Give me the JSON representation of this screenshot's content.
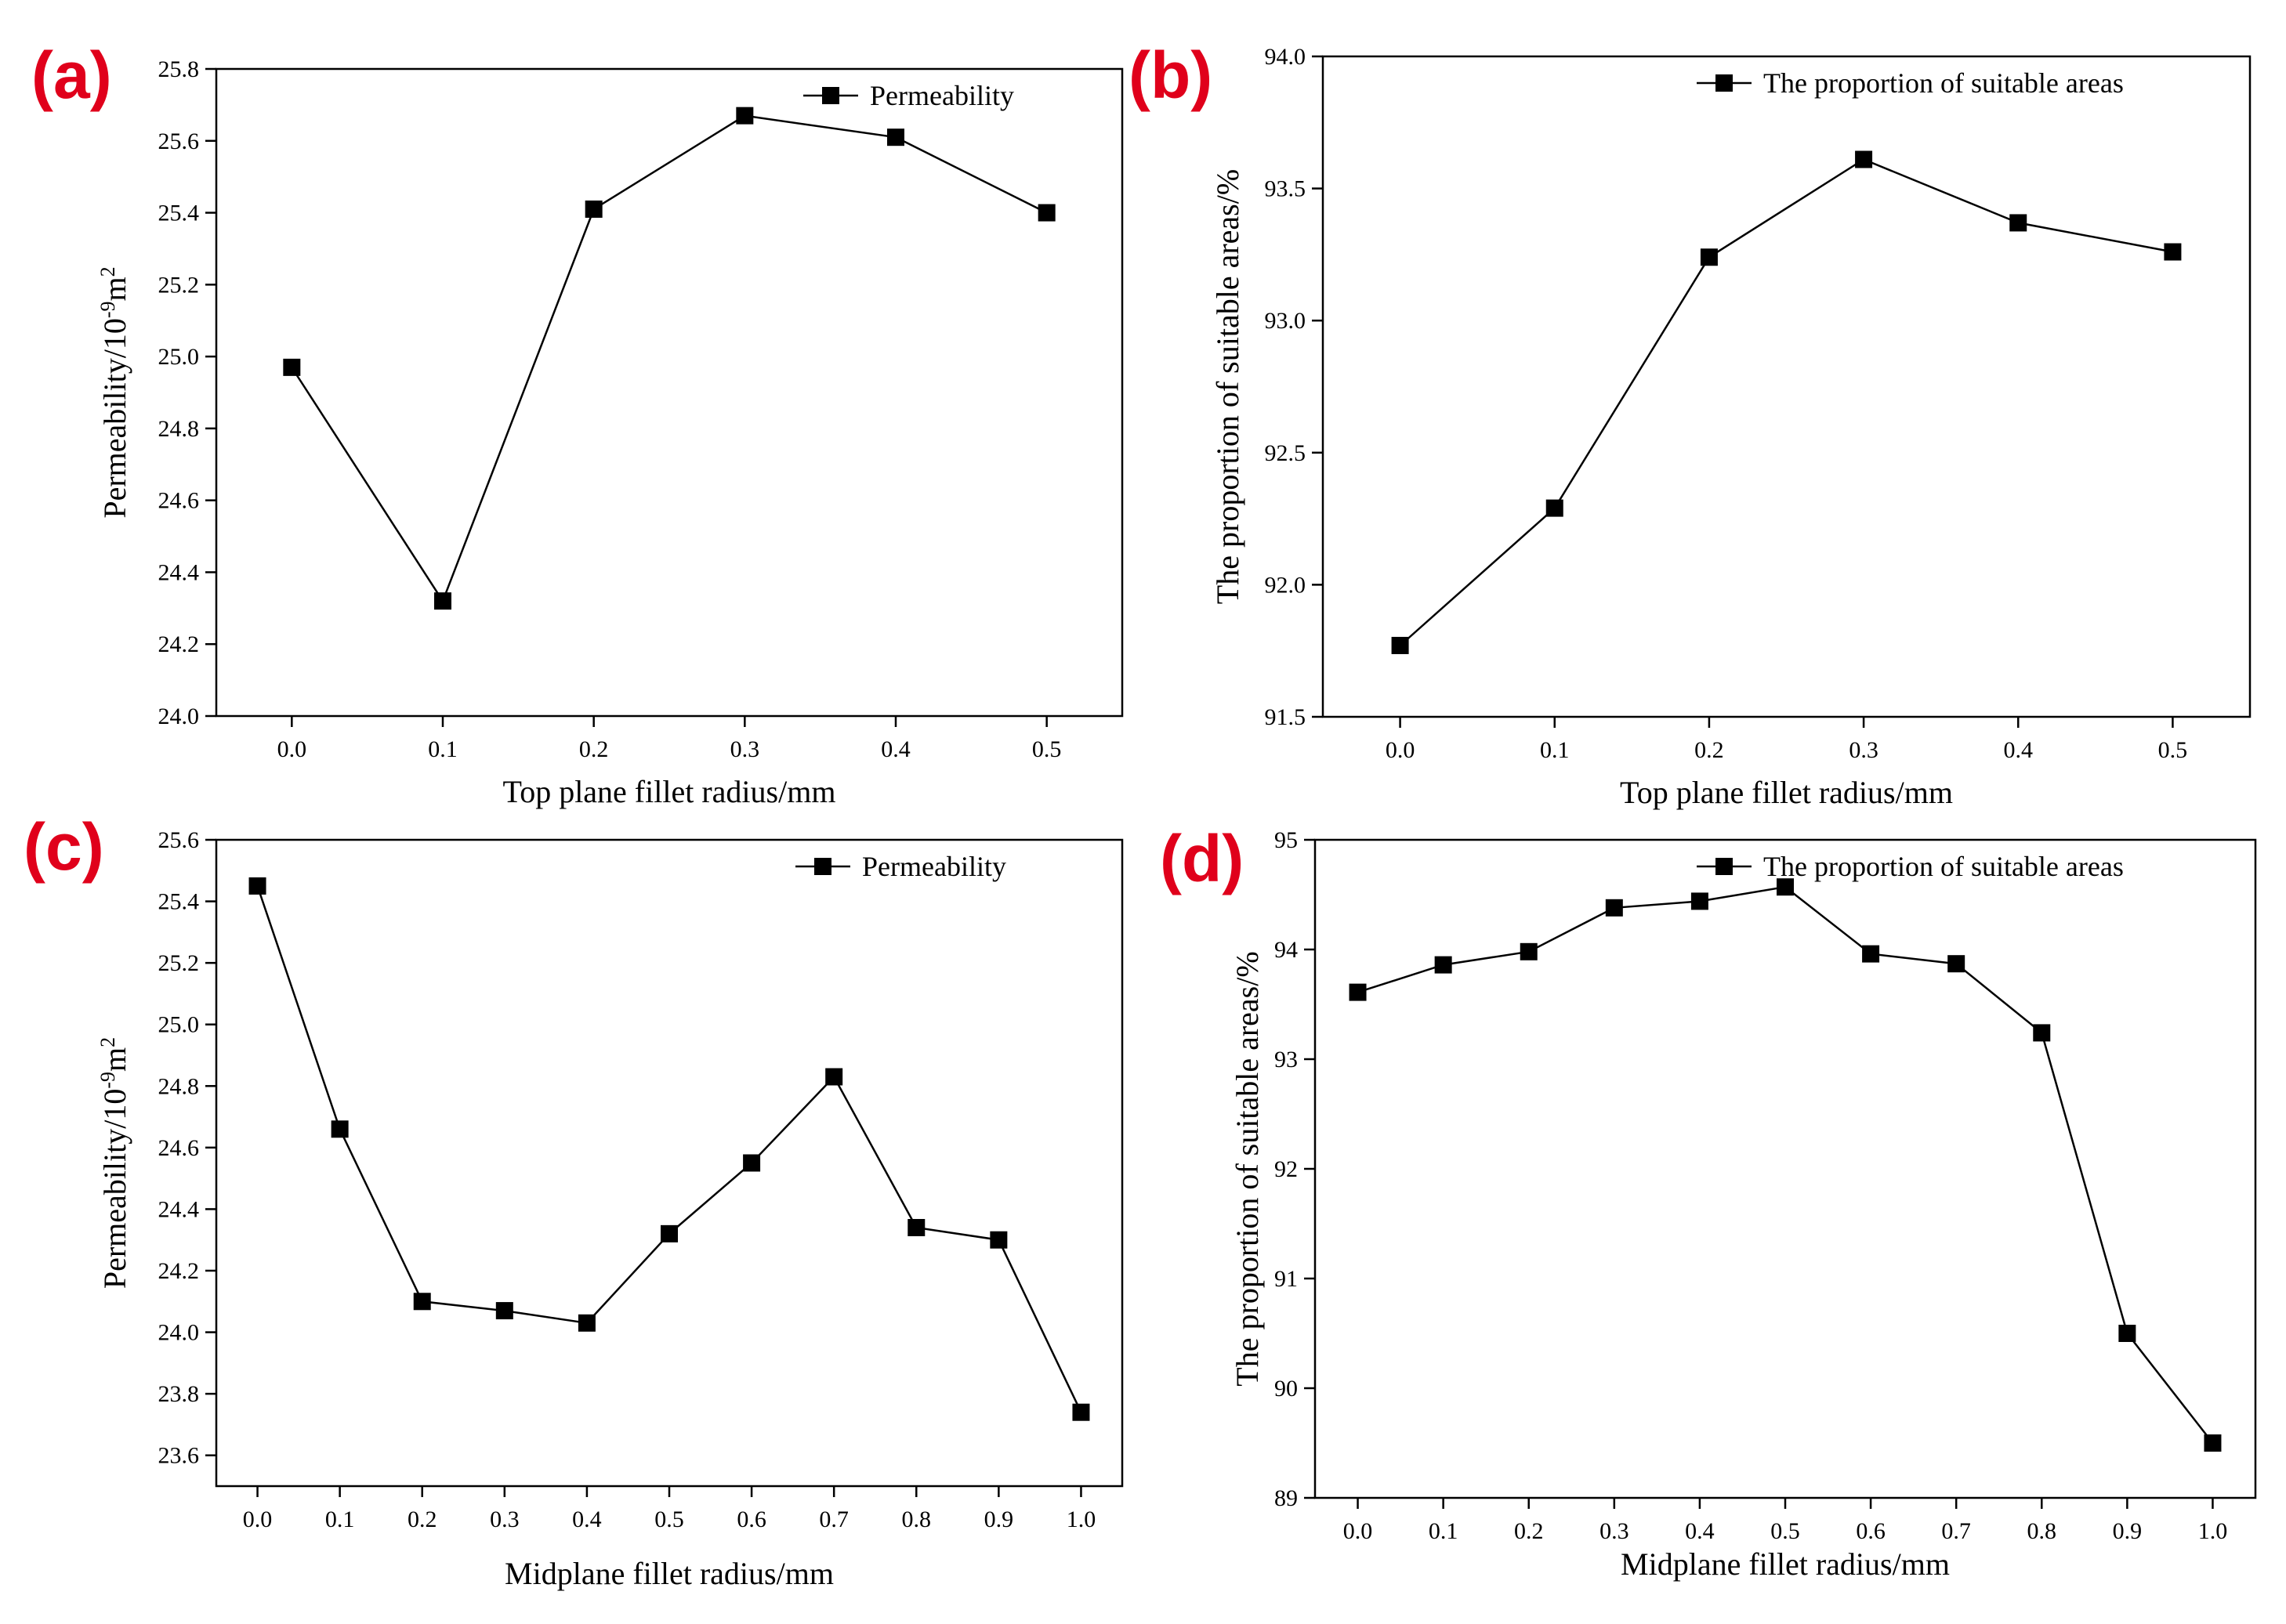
{
  "chart_data": [
    {
      "type": "line",
      "panel_label": "(a)",
      "xlabel": "Top plane fillet radius/mm",
      "ylabel": "Permeability/10<sup>-9</sup>m<sup>2</sup>",
      "legend": "Permeability",
      "legend_position": "top-right",
      "x": [
        0.0,
        0.1,
        0.2,
        0.3,
        0.4,
        0.5
      ],
      "y": [
        24.97,
        24.32,
        25.41,
        25.67,
        25.61,
        25.4
      ],
      "xlim": [
        -0.05,
        0.55
      ],
      "ylim": [
        24.0,
        25.8
      ],
      "xticks": [
        "0.0",
        "0.1",
        "0.2",
        "0.3",
        "0.4",
        "0.5"
      ],
      "yticks": [
        "24.0",
        "24.2",
        "24.4",
        "24.6",
        "24.8",
        "25.0",
        "25.2",
        "25.4",
        "25.6",
        "25.8"
      ]
    },
    {
      "type": "line",
      "panel_label": "(b)",
      "xlabel": "Top plane fillet radius/mm",
      "ylabel": "The proportion of suitable areas/%",
      "legend": "The proportion of suitable areas",
      "legend_position": "top-right",
      "x": [
        0.0,
        0.1,
        0.2,
        0.3,
        0.4,
        0.5
      ],
      "y": [
        91.77,
        92.29,
        93.24,
        93.61,
        93.37,
        93.26
      ],
      "xlim": [
        -0.05,
        0.55
      ],
      "ylim": [
        91.5,
        94.0
      ],
      "xticks": [
        "0.0",
        "0.1",
        "0.2",
        "0.3",
        "0.4",
        "0.5"
      ],
      "yticks": [
        "91.5",
        "92.0",
        "92.5",
        "93.0",
        "93.5",
        "94.0"
      ]
    },
    {
      "type": "line",
      "panel_label": "(c)",
      "xlabel": "Midplane fillet radius/mm",
      "ylabel": "Permeability/10<sup>-9</sup>m<sup>2</sup>",
      "legend": "Permeability",
      "legend_position": "top-right",
      "x": [
        0.0,
        0.1,
        0.2,
        0.3,
        0.4,
        0.5,
        0.6,
        0.7,
        0.8,
        0.9,
        1.0
      ],
      "y": [
        25.45,
        24.66,
        24.1,
        24.07,
        24.03,
        24.32,
        24.55,
        24.83,
        24.34,
        24.3,
        23.74
      ],
      "xlim": [
        -0.05,
        1.05
      ],
      "ylim": [
        23.5,
        25.6
      ],
      "xticks": [
        "0.0",
        "0.1",
        "0.2",
        "0.3",
        "0.4",
        "0.5",
        "0.6",
        "0.7",
        "0.8",
        "0.9",
        "1.0"
      ],
      "yticks": [
        "23.6",
        "23.8",
        "24.0",
        "24.2",
        "24.4",
        "24.6",
        "24.8",
        "25.0",
        "25.2",
        "25.4",
        "25.6"
      ]
    },
    {
      "type": "line",
      "panel_label": "(d)",
      "xlabel": "Midplane fillet radius/mm",
      "ylabel": "The proportion of suitable areas/%",
      "legend": "The proportion of suitable areas",
      "legend_position": "top-right",
      "x": [
        0.0,
        0.1,
        0.2,
        0.3,
        0.4,
        0.5,
        0.6,
        0.7,
        0.8,
        0.9,
        1.0
      ],
      "y": [
        93.61,
        93.86,
        93.98,
        94.38,
        94.44,
        94.57,
        93.96,
        93.87,
        93.24,
        90.5,
        89.5
      ],
      "xlim": [
        -0.05,
        1.05
      ],
      "ylim": [
        89.0,
        95.0
      ],
      "xticks": [
        "0.0",
        "0.1",
        "0.2",
        "0.3",
        "0.4",
        "0.5",
        "0.6",
        "0.7",
        "0.8",
        "0.9",
        "1.0"
      ],
      "yticks": [
        "89",
        "90",
        "91",
        "92",
        "93",
        "94",
        "95"
      ]
    }
  ]
}
